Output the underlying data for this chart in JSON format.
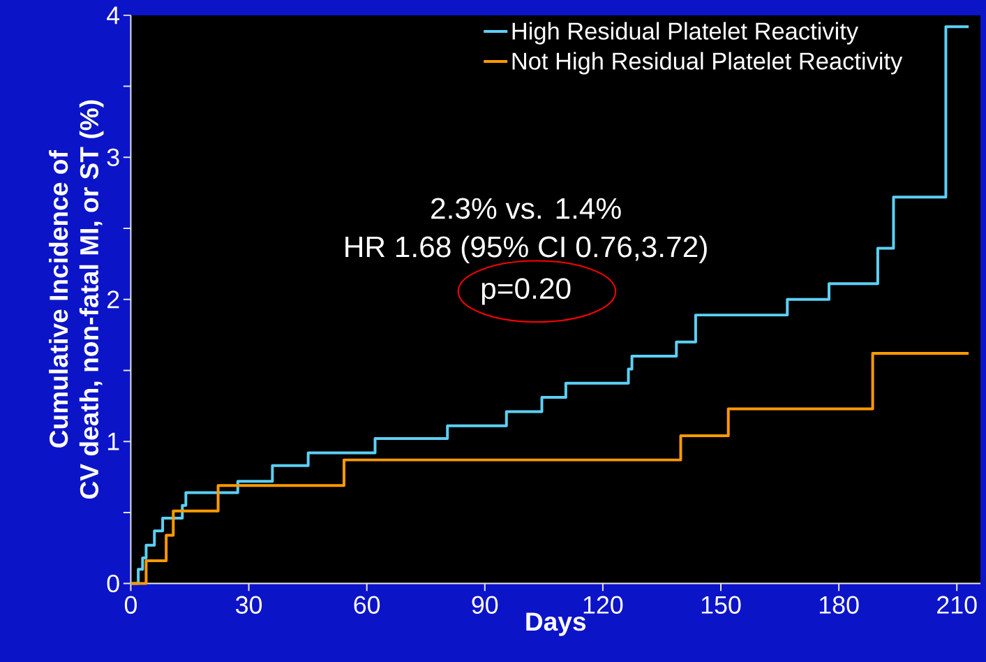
{
  "chart_data": {
    "type": "step",
    "xlabel": "Days",
    "ylabel": "Cumulative Incidence of\nCV death, non-fatal MI, or ST (%)",
    "xlim": [
      0,
      216
    ],
    "xticks": [
      0,
      30,
      60,
      90,
      120,
      150,
      180,
      210
    ],
    "ylim": [
      0,
      4
    ],
    "yticks": [
      0,
      {
        "value": 0.5,
        "label": null
      },
      1,
      {
        "value": 1.5,
        "label": null
      },
      2,
      {
        "value": 2.5,
        "label": null
      },
      3,
      {
        "value": 3.5,
        "label": null
      },
      4
    ],
    "legend": "top right",
    "marker": "none",
    "line_style": "solid",
    "grid": false,
    "annotations": [
      "2.3% vs. 1.4%",
      "HR 1.68 (95% CI 0.76,3.72)",
      "p=0.20"
    ],
    "series": [
      {
        "name": "High Residual Platelet Reactivity",
        "color": "#5cd0f5",
        "x": [
          0,
          1.9,
          3,
          3.9,
          6,
          8.1,
          13.1,
          14,
          27.2,
          36,
          45.1,
          62.1,
          80.5,
          95.5,
          104.5,
          110.6,
          126.5,
          127.4,
          138.7,
          143.6,
          166.9,
          177.5,
          189.9,
          193.9,
          207.2,
          213
        ],
        "values": [
          0,
          0.1,
          0.18,
          0.27,
          0.37,
          0.46,
          0.55,
          0.64,
          0.72,
          0.83,
          0.92,
          1.02,
          1.11,
          1.21,
          1.31,
          1.41,
          1.51,
          1.6,
          1.7,
          1.89,
          2.0,
          2.11,
          2.36,
          2.72,
          3.92,
          3.92
        ]
      },
      {
        "name": "Not High Residual Platelet Reactivity",
        "color": "#ff9a00",
        "x": [
          0,
          3.9,
          9,
          10.8,
          22.2,
          54.2,
          139.8,
          151.9,
          188.6,
          213
        ],
        "values": [
          0,
          0.16,
          0.34,
          0.51,
          0.69,
          0.87,
          1.04,
          1.23,
          1.62,
          1.62
        ]
      }
    ]
  }
}
